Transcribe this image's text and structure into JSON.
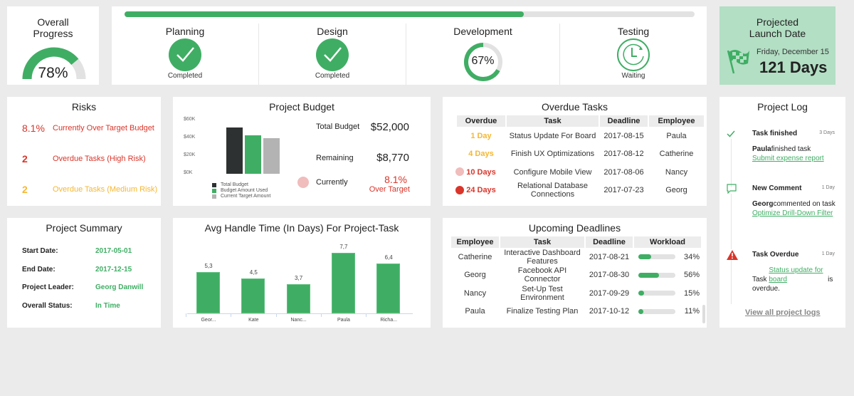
{
  "overall": {
    "title_line1": "Overall",
    "title_line2": "Progress",
    "value": "78%",
    "percent": 78
  },
  "phases": {
    "progress_percent": 70,
    "items": [
      {
        "name": "Planning",
        "status": "Completed",
        "icon": "check-circle-icon"
      },
      {
        "name": "Design",
        "status": "Completed",
        "icon": "check-circle-icon"
      },
      {
        "name": "Development",
        "status": "67%",
        "percent": 67,
        "icon": "donut-progress"
      },
      {
        "name": "Testing",
        "status": "Waiting",
        "icon": "clock-icon"
      }
    ]
  },
  "launch": {
    "title_line1": "Projected",
    "title_line2": "Launch Date",
    "date": "Friday, December 15",
    "days": "121 Days",
    "icon": "checkered-flag-icon",
    "bg": "#b3dfc4"
  },
  "risks": {
    "title": "Risks",
    "items": [
      {
        "value": "8.1%",
        "label": "Currently Over Target Budget",
        "color": "#d9352a"
      },
      {
        "value": "2",
        "label": "Overdue Tasks (High Risk)",
        "color": "#d9352a"
      },
      {
        "value": "2",
        "label": "Overdue Tasks (Medium Risk)",
        "color": "#f5b731"
      }
    ]
  },
  "budget": {
    "title": "Project Budget",
    "total_label": "Total Budget",
    "total": "$52,000",
    "remaining_label": "Remaining",
    "remaining": "$8,770",
    "current_label": "Currently",
    "current_value": "8.1%",
    "current_sub": "Over Target"
  },
  "overdue": {
    "title": "Overdue Tasks",
    "headers": [
      "Overdue",
      "Task",
      "Deadline",
      "Employee"
    ],
    "rows": [
      {
        "overdue": "1 Day",
        "task": "Status Update For Board",
        "deadline": "2017-08-15",
        "employee": "Paula",
        "color": "#f5b731",
        "dot": ""
      },
      {
        "overdue": "4 Days",
        "task": "Finish UX Optimizations",
        "deadline": "2017-08-12",
        "employee": "Catherine",
        "color": "#f5b731",
        "dot": ""
      },
      {
        "overdue": "10 Days",
        "task": "Configure Mobile View",
        "deadline": "2017-08-06",
        "employee": "Nancy",
        "color": "#d9352a",
        "dot": "#f0bcbc"
      },
      {
        "overdue": "24 Days",
        "task": "Relational Database Connections",
        "deadline": "2017-07-23",
        "employee": "Georg",
        "color": "#d9352a",
        "dot": "#d9352a"
      }
    ]
  },
  "log": {
    "title": "Project Log",
    "entries": [
      {
        "icon": "check-icon",
        "title": "Task finished",
        "time": "3 Days",
        "who": "Paula",
        "text": "finished task",
        "link": "Submit expense report"
      },
      {
        "icon": "comment-icon",
        "title": "New Comment",
        "time": "1 Day",
        "who": "Georg",
        "text": "commented on task",
        "link": "Optimize Drill-Down Filter"
      },
      {
        "icon": "warning-icon",
        "title": "Task Overdue",
        "time": "1 Day",
        "pre": "Task",
        "link": "Status update for board",
        "post": "is overdue."
      }
    ],
    "view_all": "View all project logs"
  },
  "summary": {
    "title": "Project Summary",
    "rows": [
      {
        "label": "Start Date:",
        "value": "2017-05-01"
      },
      {
        "label": "End Date:",
        "value": "2017-12-15"
      },
      {
        "label": "Project Leader:",
        "value": "Georg Danwill"
      },
      {
        "label": "Overall Status:",
        "value": "In Time"
      }
    ]
  },
  "upcoming": {
    "title": "Upcoming Deadlines",
    "headers": [
      "Employee",
      "Task",
      "Deadline",
      "Workload"
    ],
    "rows": [
      {
        "employee": "Catherine",
        "task": "Interactive Dashboard Features",
        "deadline": "2017-08-21",
        "workload": "34%",
        "pct": 34
      },
      {
        "employee": "Georg",
        "task": "Facebook API Connector",
        "deadline": "2017-08-30",
        "workload": "56%",
        "pct": 56
      },
      {
        "employee": "Nancy",
        "task": "Set-Up Test Environment",
        "deadline": "2017-09-29",
        "workload": "15%",
        "pct": 15
      },
      {
        "employee": "Paula",
        "task": "Finalize Testing Plan",
        "deadline": "2017-10-12",
        "workload": "11%",
        "pct": 11
      }
    ]
  },
  "chart_data": [
    {
      "type": "bar",
      "title": "Project Budget",
      "categories": [
        "Total Budget",
        "Budget Amount Used",
        "Current Target Amount"
      ],
      "values": [
        52000,
        43230,
        40000
      ],
      "colors": [
        "#2e3131",
        "#3fae64",
        "#b3b3b3"
      ],
      "yticks": [
        "$0K",
        "$20K",
        "$40K",
        "$60K"
      ],
      "ylim": [
        0,
        60000
      ],
      "legend": "bottom"
    },
    {
      "type": "bar",
      "title": "Avg Handle Time (In Days) For Project-Task",
      "categories": [
        "Geor...",
        "Kate",
        "Nanc...",
        "Paula",
        "Richa..."
      ],
      "values": [
        5.3,
        4.5,
        3.7,
        7.7,
        6.4
      ],
      "labels": [
        "5,3",
        "4,5",
        "3,7",
        "7,7",
        "6,4"
      ],
      "color": "#3fae64"
    }
  ]
}
